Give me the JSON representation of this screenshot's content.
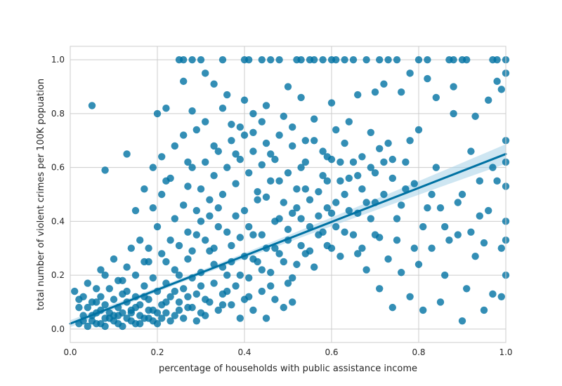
{
  "chart_data": {
    "type": "scatter",
    "title": "",
    "xlabel": "percentage of households with public assistance income",
    "ylabel": "total number of violent crimes per 100K popuation",
    "xlim": [
      0.0,
      1.0
    ],
    "ylim": [
      -0.05,
      1.05
    ],
    "xticks": [
      0.0,
      0.2,
      0.4,
      0.6,
      0.8,
      1.0
    ],
    "xtick_labels": [
      "0.0",
      "0.2",
      "0.4",
      "0.6",
      "0.8",
      "1.0"
    ],
    "yticks": [
      0.0,
      0.2,
      0.4,
      0.6,
      0.8,
      1.0
    ],
    "ytick_labels": [
      "0.0",
      "0.2",
      "0.4",
      "0.6",
      "0.8",
      "1.0"
    ],
    "grid": true,
    "point_color": "#0072a3",
    "background_color": "#ffffff",
    "grid_color": "#cccccc",
    "regression": {
      "x": [
        0.0,
        1.0
      ],
      "y": [
        0.02,
        0.65
      ],
      "ci_upper_end": 0.67,
      "ci_lower_end": 0.63,
      "band_color": "#a6d2e8"
    },
    "points": [
      [
        0.02,
        0.02
      ],
      [
        0.03,
        0.05
      ],
      [
        0.04,
        0.08
      ],
      [
        0.05,
        0.03
      ],
      [
        0.05,
        0.1
      ],
      [
        0.06,
        0.06
      ],
      [
        0.07,
        0.02
      ],
      [
        0.07,
        0.12
      ],
      [
        0.08,
        0.04
      ],
      [
        0.08,
        0.09
      ],
      [
        0.09,
        0.15
      ],
      [
        0.1,
        0.05
      ],
      [
        0.1,
        0.11
      ],
      [
        0.11,
        0.02
      ],
      [
        0.11,
        0.08
      ],
      [
        0.12,
        0.18
      ],
      [
        0.12,
        0.06
      ],
      [
        0.13,
        0.1
      ],
      [
        0.13,
        0.14
      ],
      [
        0.14,
        0.03
      ],
      [
        0.14,
        0.07
      ],
      [
        0.15,
        0.2
      ],
      [
        0.15,
        0.12
      ],
      [
        0.16,
        0.05
      ],
      [
        0.16,
        0.09
      ],
      [
        0.17,
        0.16
      ],
      [
        0.17,
        0.25
      ],
      [
        0.18,
        0.04
      ],
      [
        0.18,
        0.11
      ],
      [
        0.19,
        0.07
      ],
      [
        0.19,
        0.19
      ],
      [
        0.2,
        0.14
      ],
      [
        0.2,
        0.02
      ],
      [
        0.21,
        0.28
      ],
      [
        0.21,
        0.09
      ],
      [
        0.22,
        0.06
      ],
      [
        0.22,
        0.17
      ],
      [
        0.23,
        0.12
      ],
      [
        0.24,
        0.22
      ],
      [
        0.24,
        0.05
      ],
      [
        0.25,
        0.31
      ],
      [
        0.25,
        0.1
      ],
      [
        0.26,
        0.15
      ],
      [
        0.27,
        0.08
      ],
      [
        0.27,
        0.26
      ],
      [
        0.28,
        0.19
      ],
      [
        0.29,
        0.13
      ],
      [
        0.29,
        0.35
      ],
      [
        0.3,
        0.21
      ],
      [
        0.3,
        0.06
      ],
      [
        0.31,
        0.11
      ],
      [
        0.32,
        0.29
      ],
      [
        0.33,
        0.17
      ],
      [
        0.34,
        0.38
      ],
      [
        0.35,
        0.23
      ],
      [
        0.35,
        0.09
      ],
      [
        0.36,
        0.14
      ],
      [
        0.37,
        0.31
      ],
      [
        0.38,
        0.42
      ],
      [
        0.39,
        0.2
      ],
      [
        0.4,
        0.27
      ],
      [
        0.41,
        0.12
      ],
      [
        0.42,
        0.35
      ],
      [
        0.43,
        0.48
      ],
      [
        0.44,
        0.22
      ],
      [
        0.45,
        0.3
      ],
      [
        0.46,
        0.16
      ],
      [
        0.47,
        0.4
      ],
      [
        0.48,
        0.55
      ],
      [
        0.49,
        0.25
      ],
      [
        0.5,
        0.33
      ],
      [
        0.51,
        0.19
      ],
      [
        0.52,
        0.45
      ],
      [
        0.53,
        0.6
      ],
      [
        0.54,
        0.28
      ],
      [
        0.55,
        0.38
      ],
      [
        0.56,
        0.23
      ],
      [
        0.57,
        0.51
      ],
      [
        0.58,
        0.66
      ],
      [
        0.59,
        0.31
      ],
      [
        0.6,
        0.43
      ],
      [
        0.62,
        0.55
      ],
      [
        0.63,
        0.36
      ],
      [
        0.65,
        0.62
      ],
      [
        0.66,
        0.28
      ],
      [
        0.68,
        0.47
      ],
      [
        0.7,
        0.58
      ],
      [
        0.71,
        0.34
      ],
      [
        0.73,
        0.69
      ],
      [
        0.75,
        0.41
      ],
      [
        0.77,
        0.52
      ],
      [
        0.79,
        0.3
      ],
      [
        0.8,
        0.74
      ],
      [
        0.82,
        0.45
      ],
      [
        0.84,
        0.6
      ],
      [
        0.86,
        0.38
      ],
      [
        0.88,
        0.8
      ],
      [
        0.9,
        0.5
      ],
      [
        0.92,
        0.66
      ],
      [
        0.94,
        0.42
      ],
      [
        0.96,
        0.85
      ],
      [
        0.98,
        0.55
      ],
      [
        1.0,
        0.7
      ],
      [
        1.0,
        0.4
      ],
      [
        1.0,
        0.95
      ],
      [
        1.0,
        0.2
      ],
      [
        1.0,
        0.53
      ],
      [
        0.99,
        0.3
      ],
      [
        0.97,
        0.13
      ],
      [
        0.95,
        0.07
      ],
      [
        0.05,
        0.83
      ],
      [
        0.08,
        0.59
      ],
      [
        0.13,
        0.65
      ],
      [
        0.2,
        0.8
      ],
      [
        0.22,
        0.82
      ],
      [
        0.26,
        0.92
      ],
      [
        0.28,
        0.81
      ],
      [
        0.31,
        0.95
      ],
      [
        0.33,
        0.91
      ],
      [
        0.36,
        0.87
      ],
      [
        0.39,
        0.75
      ],
      [
        0.42,
        0.8
      ],
      [
        0.45,
        0.83
      ],
      [
        0.5,
        0.9
      ],
      [
        0.53,
        0.86
      ],
      [
        0.6,
        0.84
      ],
      [
        0.64,
        0.77
      ],
      [
        0.66,
        0.87
      ],
      [
        0.7,
        0.88
      ],
      [
        0.72,
        0.91
      ],
      [
        0.76,
        0.88
      ],
      [
        0.78,
        0.95
      ],
      [
        0.82,
        0.93
      ],
      [
        0.84,
        0.86
      ],
      [
        0.88,
        0.9
      ],
      [
        0.93,
        0.79
      ],
      [
        0.99,
        0.89
      ],
      [
        0.98,
        0.92
      ],
      [
        0.25,
        1.0
      ],
      [
        0.26,
        1.0
      ],
      [
        0.28,
        1.0
      ],
      [
        0.3,
        1.0
      ],
      [
        0.35,
        1.0
      ],
      [
        0.4,
        1.0
      ],
      [
        0.41,
        1.0
      ],
      [
        0.44,
        1.0
      ],
      [
        0.46,
        1.0
      ],
      [
        0.48,
        1.0
      ],
      [
        0.52,
        1.0
      ],
      [
        0.53,
        1.0
      ],
      [
        0.55,
        1.0
      ],
      [
        0.56,
        1.0
      ],
      [
        0.58,
        1.0
      ],
      [
        0.6,
        1.0
      ],
      [
        0.61,
        1.0
      ],
      [
        0.63,
        1.0
      ],
      [
        0.65,
        1.0
      ],
      [
        0.68,
        1.0
      ],
      [
        0.71,
        1.0
      ],
      [
        0.73,
        1.0
      ],
      [
        0.75,
        1.0
      ],
      [
        0.8,
        1.0
      ],
      [
        0.82,
        1.0
      ],
      [
        0.87,
        1.0
      ],
      [
        0.88,
        1.0
      ],
      [
        0.9,
        1.0
      ],
      [
        0.91,
        1.0
      ],
      [
        0.97,
        1.0
      ],
      [
        0.98,
        1.0
      ],
      [
        1.0,
        1.0
      ],
      [
        0.01,
        0.14
      ],
      [
        0.02,
        0.08
      ],
      [
        0.03,
        0.12
      ],
      [
        0.04,
        0.17
      ],
      [
        0.06,
        0.1
      ],
      [
        0.07,
        0.22
      ],
      [
        0.09,
        0.04
      ],
      [
        0.1,
        0.26
      ],
      [
        0.12,
        0.13
      ],
      [
        0.14,
        0.3
      ],
      [
        0.15,
        0.02
      ],
      [
        0.16,
        0.33
      ],
      [
        0.18,
        0.25
      ],
      [
        0.19,
        0.45
      ],
      [
        0.2,
        0.38
      ],
      [
        0.21,
        0.5
      ],
      [
        0.23,
        0.56
      ],
      [
        0.24,
        0.41
      ],
      [
        0.26,
        0.46
      ],
      [
        0.27,
        0.53
      ],
      [
        0.28,
        0.6
      ],
      [
        0.29,
        0.44
      ],
      [
        0.3,
        0.52
      ],
      [
        0.31,
        0.62
      ],
      [
        0.32,
        0.48
      ],
      [
        0.33,
        0.57
      ],
      [
        0.34,
        0.66
      ],
      [
        0.35,
        0.5
      ],
      [
        0.36,
        0.6
      ],
      [
        0.37,
        0.7
      ],
      [
        0.38,
        0.54
      ],
      [
        0.39,
        0.63
      ],
      [
        0.4,
        0.72
      ],
      [
        0.41,
        0.58
      ],
      [
        0.42,
        0.66
      ],
      [
        0.43,
        0.51
      ],
      [
        0.44,
        0.61
      ],
      [
        0.45,
        0.69
      ],
      [
        0.46,
        0.55
      ],
      [
        0.47,
        0.63
      ],
      [
        0.48,
        0.72
      ],
      [
        0.49,
        0.47
      ],
      [
        0.5,
        0.58
      ],
      [
        0.51,
        0.68
      ],
      [
        0.52,
        0.52
      ],
      [
        0.53,
        0.41
      ],
      [
        0.54,
        0.62
      ],
      [
        0.55,
        0.48
      ],
      [
        0.56,
        0.7
      ],
      [
        0.57,
        0.35
      ],
      [
        0.58,
        0.57
      ],
      [
        0.59,
        0.45
      ],
      [
        0.6,
        0.63
      ],
      [
        0.61,
        0.38
      ],
      [
        0.62,
        0.27
      ],
      [
        0.63,
        0.5
      ],
      [
        0.64,
        0.44
      ],
      [
        0.65,
        0.35
      ],
      [
        0.66,
        0.57
      ],
      [
        0.67,
        0.3
      ],
      [
        0.68,
        0.22
      ],
      [
        0.69,
        0.41
      ],
      [
        0.7,
        0.35
      ],
      [
        0.71,
        0.15
      ],
      [
        0.72,
        0.5
      ],
      [
        0.73,
        0.26
      ],
      [
        0.74,
        0.08
      ],
      [
        0.75,
        0.33
      ],
      [
        0.76,
        0.21
      ],
      [
        0.78,
        0.12
      ],
      [
        0.8,
        0.24
      ],
      [
        0.81,
        0.07
      ],
      [
        0.83,
        0.3
      ],
      [
        0.85,
        0.1
      ],
      [
        0.86,
        0.2
      ],
      [
        0.89,
        0.35
      ],
      [
        0.9,
        0.03
      ],
      [
        0.91,
        0.15
      ],
      [
        0.93,
        0.27
      ],
      [
        0.95,
        0.32
      ],
      [
        0.03,
        0.03
      ],
      [
        0.04,
        0.01
      ],
      [
        0.05,
        0.05
      ],
      [
        0.06,
        0.02
      ],
      [
        0.07,
        0.07
      ],
      [
        0.08,
        0.01
      ],
      [
        0.09,
        0.06
      ],
      [
        0.1,
        0.03
      ],
      [
        0.11,
        0.05
      ],
      [
        0.12,
        0.01
      ],
      [
        0.13,
        0.04
      ],
      [
        0.14,
        0.06
      ],
      [
        0.15,
        0.08
      ],
      [
        0.16,
        0.02
      ],
      [
        0.17,
        0.04
      ],
      [
        0.18,
        0.07
      ],
      [
        0.19,
        0.03
      ],
      [
        0.2,
        0.06
      ],
      [
        0.21,
        0.04
      ],
      [
        0.22,
        0.1
      ],
      [
        0.23,
        0.03
      ],
      [
        0.24,
        0.14
      ],
      [
        0.25,
        0.07
      ],
      [
        0.26,
        0.04
      ],
      [
        0.27,
        0.12
      ],
      [
        0.28,
        0.08
      ],
      [
        0.29,
        0.03
      ],
      [
        0.3,
        0.16
      ],
      [
        0.31,
        0.05
      ],
      [
        0.32,
        0.1
      ],
      [
        0.33,
        0.24
      ],
      [
        0.34,
        0.07
      ],
      [
        0.35,
        0.13
      ],
      [
        0.36,
        0.2
      ],
      [
        0.37,
        0.09
      ],
      [
        0.38,
        0.16
      ],
      [
        0.39,
        0.04
      ],
      [
        0.4,
        0.11
      ],
      [
        0.41,
        0.19
      ],
      [
        0.42,
        0.07
      ],
      [
        0.43,
        0.25
      ],
      [
        0.44,
        0.14
      ],
      [
        0.45,
        0.04
      ],
      [
        0.46,
        0.21
      ],
      [
        0.47,
        0.11
      ],
      [
        0.48,
        0.28
      ],
      [
        0.49,
        0.08
      ],
      [
        0.5,
        0.17
      ],
      [
        0.51,
        0.1
      ],
      [
        0.52,
        0.24
      ],
      [
        0.02,
        0.11
      ],
      [
        0.06,
        0.15
      ],
      [
        0.08,
        0.2
      ],
      [
        0.11,
        0.18
      ],
      [
        0.13,
        0.23
      ],
      [
        0.17,
        0.12
      ],
      [
        0.18,
        0.3
      ],
      [
        0.22,
        0.25
      ],
      [
        0.23,
        0.33
      ],
      [
        0.25,
        0.2
      ],
      [
        0.27,
        0.36
      ],
      [
        0.28,
        0.29
      ],
      [
        0.3,
        0.4
      ],
      [
        0.31,
        0.33
      ],
      [
        0.32,
        0.42
      ],
      [
        0.33,
        0.3
      ],
      [
        0.34,
        0.45
      ],
      [
        0.36,
        0.36
      ],
      [
        0.37,
        0.25
      ],
      [
        0.39,
        0.34
      ],
      [
        0.4,
        0.44
      ],
      [
        0.41,
        0.38
      ],
      [
        0.42,
        0.26
      ],
      [
        0.44,
        0.35
      ],
      [
        0.45,
        0.49
      ],
      [
        0.47,
        0.3
      ],
      [
        0.48,
        0.41
      ],
      [
        0.5,
        0.37
      ],
      [
        0.51,
        0.43
      ],
      [
        0.53,
        0.31
      ],
      [
        0.54,
        0.52
      ],
      [
        0.55,
        0.29
      ],
      [
        0.57,
        0.42
      ],
      [
        0.58,
        0.36
      ],
      [
        0.59,
        0.55
      ],
      [
        0.6,
        0.3
      ],
      [
        0.61,
        0.47
      ],
      [
        0.62,
        0.62
      ],
      [
        0.64,
        0.56
      ],
      [
        0.66,
        0.43
      ],
      [
        0.67,
        0.52
      ],
      [
        0.69,
        0.6
      ],
      [
        0.7,
        0.47
      ],
      [
        0.72,
        0.62
      ],
      [
        0.74,
        0.56
      ],
      [
        0.76,
        0.46
      ],
      [
        0.77,
        0.62
      ],
      [
        0.79,
        0.54
      ],
      [
        0.81,
        0.38
      ],
      [
        0.83,
        0.5
      ],
      [
        0.85,
        0.45
      ],
      [
        0.87,
        0.33
      ],
      [
        0.89,
        0.47
      ],
      [
        0.92,
        0.36
      ],
      [
        0.94,
        0.55
      ],
      [
        0.96,
        0.44
      ],
      [
        0.97,
        0.6
      ],
      [
        0.99,
        0.12
      ],
      [
        1.0,
        0.33
      ],
      [
        1.0,
        0.62
      ],
      [
        0.15,
        0.44
      ],
      [
        0.17,
        0.52
      ],
      [
        0.19,
        0.6
      ],
      [
        0.21,
        0.64
      ],
      [
        0.22,
        0.55
      ],
      [
        0.24,
        0.68
      ],
      [
        0.26,
        0.72
      ],
      [
        0.27,
        0.62
      ],
      [
        0.29,
        0.74
      ],
      [
        0.31,
        0.77
      ],
      [
        0.33,
        0.68
      ],
      [
        0.35,
        0.82
      ],
      [
        0.37,
        0.76
      ],
      [
        0.38,
        0.65
      ],
      [
        0.4,
        0.85
      ],
      [
        0.42,
        0.73
      ],
      [
        0.44,
        0.77
      ],
      [
        0.46,
        0.65
      ],
      [
        0.49,
        0.79
      ],
      [
        0.51,
        0.75
      ],
      [
        0.54,
        0.7
      ],
      [
        0.56,
        0.78
      ],
      [
        0.59,
        0.64
      ],
      [
        0.61,
        0.74
      ],
      [
        0.63,
        0.69
      ],
      [
        0.67,
        0.64
      ],
      [
        0.69,
        0.73
      ],
      [
        0.71,
        0.67
      ],
      [
        0.74,
        0.63
      ],
      [
        0.78,
        0.7
      ]
    ]
  }
}
